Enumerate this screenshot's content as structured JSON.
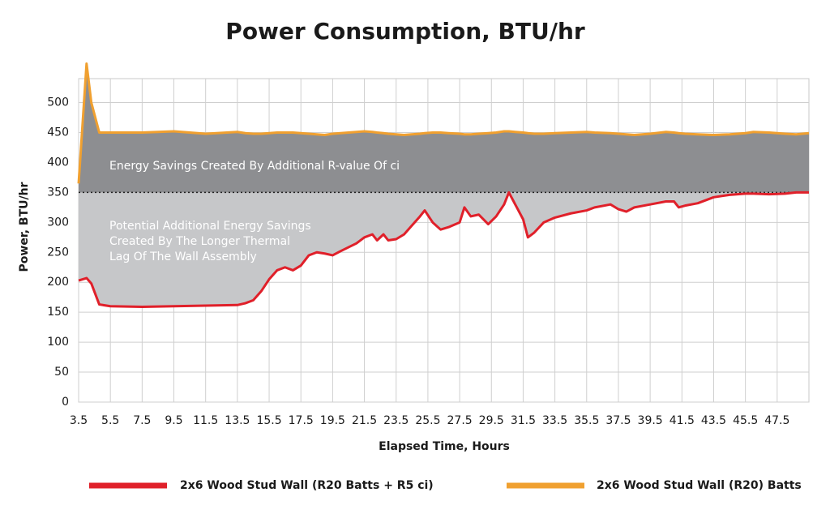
{
  "chart_data": {
    "type": "area-line",
    "title": "Power Consumption, BTU/hr",
    "x_label": "Elapsed Time, Hours",
    "y_label": "Power, BTU/hr",
    "x": [
      3.5,
      4,
      4.3,
      4.8,
      5.5,
      7.5,
      9.5,
      11.5,
      13.5,
      14,
      14.5,
      15,
      15.5,
      16,
      16.5,
      17,
      17.5,
      18,
      18.5,
      19,
      19.5,
      20,
      21,
      21.5,
      22,
      22.3,
      22.7,
      23,
      23.5,
      24,
      25,
      25.3,
      25.8,
      26.3,
      26.8,
      27.5,
      27.8,
      28.2,
      28.7,
      29.3,
      29.8,
      30.3,
      30.6,
      31,
      31.5,
      31.8,
      32.2,
      32.8,
      33.5,
      34.5,
      35.5,
      36,
      37,
      37.5,
      38,
      38.5,
      39.5,
      40.5,
      41,
      41.3,
      41.7,
      42.5,
      43.5,
      44.5,
      45.5,
      46,
      47,
      48,
      48.7,
      49.5
    ],
    "series": [
      {
        "name": "2x6 Wood Stud Wall (R20 Batts + R5 ci)",
        "color": "#e0202a",
        "fill": "#c6c7c9",
        "values": [
          203,
          207,
          198,
          163,
          160,
          159,
          160,
          161,
          162,
          165,
          170,
          185,
          205,
          220,
          225,
          220,
          228,
          245,
          250,
          248,
          245,
          252,
          265,
          275,
          280,
          270,
          280,
          270,
          272,
          280,
          310,
          320,
          300,
          288,
          292,
          300,
          325,
          310,
          313,
          297,
          310,
          330,
          350,
          330,
          305,
          275,
          283,
          300,
          308,
          315,
          320,
          325,
          330,
          322,
          318,
          325,
          330,
          335,
          335,
          325,
          328,
          332,
          342,
          346,
          348,
          348,
          347,
          348,
          350,
          350
        ]
      },
      {
        "name": "2x6 Wood Stud Wall (R20) Batts",
        "color": "#f0a030",
        "fill": "#8d8e91",
        "values": [
          365,
          565,
          500,
          450,
          450,
          450,
          452,
          448,
          451,
          449,
          448,
          448,
          449,
          450,
          450,
          450,
          449,
          448,
          447,
          446,
          448,
          449,
          451,
          452,
          451,
          450,
          449,
          448,
          447,
          446,
          448,
          449,
          450,
          450,
          449,
          448,
          447,
          447,
          448,
          449,
          450,
          452,
          452,
          451,
          450,
          449,
          448,
          448,
          449,
          450,
          451,
          450,
          449,
          448,
          447,
          446,
          448,
          451,
          450,
          449,
          448,
          447,
          446,
          447,
          449,
          451,
          450,
          448,
          447,
          449
        ]
      }
    ],
    "reference_line": 350,
    "annotations": [
      "Energy Savings Created By Additional R-value Of ci",
      "Potential Additional Energy Savings",
      "Created By The Longer Thermal",
      "Lag Of The Wall Assembly"
    ],
    "xlim": [
      3.5,
      49.5
    ],
    "ylim": [
      0,
      540
    ],
    "xticks": [
      3.5,
      5.5,
      7.5,
      9.5,
      11.5,
      13.5,
      15.5,
      17.5,
      19.5,
      21.5,
      23.5,
      25.5,
      27.5,
      29.5,
      31.5,
      33.5,
      35.5,
      37.5,
      39.5,
      41.5,
      43.5,
      45.5,
      47.5
    ],
    "yticks": [
      0,
      50,
      100,
      150,
      200,
      250,
      300,
      350,
      400,
      450,
      500
    ],
    "grid": true
  }
}
